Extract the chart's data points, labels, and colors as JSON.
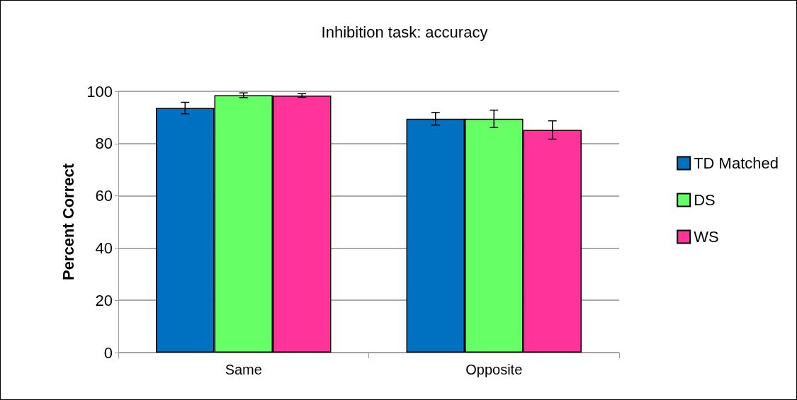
{
  "chart_data": {
    "type": "bar",
    "title": "Inhibition task: accuracy",
    "ylabel": "Percent Correct",
    "categories": [
      "Same",
      "Opposite"
    ],
    "series": [
      {
        "name": "TD Matched",
        "color": "#0070c0",
        "values": [
          93.6,
          89.5
        ],
        "errors": [
          2.2,
          2.4
        ]
      },
      {
        "name": "DS",
        "color": "#66ff66",
        "values": [
          98.5,
          89.5
        ],
        "errors": [
          0.9,
          3.3
        ]
      },
      {
        "name": "WS",
        "color": "#ff3399",
        "values": [
          98.4,
          85.2
        ],
        "errors": [
          0.7,
          3.5
        ]
      }
    ],
    "ylim": [
      0,
      100
    ],
    "yticks": [
      0,
      20,
      40,
      60,
      80,
      100
    ],
    "grid": "y",
    "legend": "right"
  }
}
